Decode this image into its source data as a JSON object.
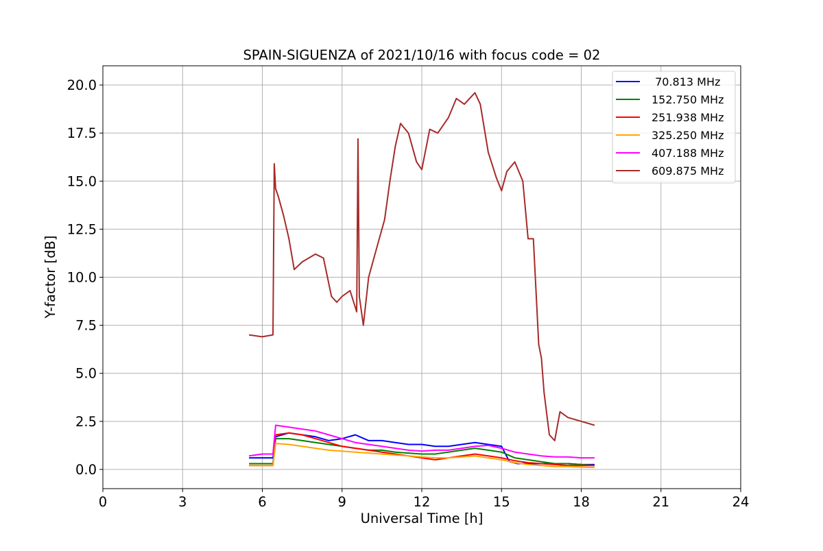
{
  "chart_data": {
    "type": "line",
    "title": "SPAIN-SIGUENZA of 2021/10/16 with focus code = 02",
    "xlabel": "Universal Time [h]",
    "ylabel": "Y-factor [dB]",
    "xlim": [
      0,
      24
    ],
    "ylim": [
      -1.0,
      21.0
    ],
    "x_ticks": [
      0,
      3,
      6,
      9,
      12,
      15,
      18,
      21,
      24
    ],
    "x_tick_labels": [
      "0",
      "3",
      "6",
      "9",
      "12",
      "15",
      "18",
      "21",
      "24"
    ],
    "y_ticks": [
      0.0,
      2.5,
      5.0,
      7.5,
      10.0,
      12.5,
      15.0,
      17.5,
      20.0
    ],
    "y_tick_labels": [
      "0.0",
      "2.5",
      "5.0",
      "7.5",
      "10.0",
      "12.5",
      "15.0",
      "17.5",
      "20.0"
    ],
    "grid": true,
    "legend_position": "top-right",
    "series": [
      {
        "name": " 70.813 MHz",
        "color": "#0000ff",
        "x": [
          5.5,
          6.0,
          6.4,
          6.5,
          7.0,
          7.5,
          8.0,
          8.5,
          9.0,
          9.5,
          10.0,
          10.5,
          11.0,
          11.5,
          12.0,
          12.5,
          13.0,
          13.5,
          14.0,
          14.5,
          15.0,
          15.3,
          15.6,
          16.0,
          16.5,
          17.0,
          17.5,
          18.0,
          18.5
        ],
        "y": [
          0.6,
          0.6,
          0.6,
          1.7,
          1.9,
          1.8,
          1.7,
          1.5,
          1.6,
          1.8,
          1.5,
          1.5,
          1.4,
          1.3,
          1.3,
          1.2,
          1.2,
          1.3,
          1.4,
          1.3,
          1.2,
          0.4,
          0.3,
          0.3,
          0.3,
          0.3,
          0.3,
          0.25,
          0.25
        ]
      },
      {
        "name": "152.750 MHz",
        "color": "#008000",
        "x": [
          5.5,
          6.0,
          6.4,
          6.5,
          7.0,
          7.5,
          8.0,
          8.5,
          9.0,
          9.5,
          10.0,
          10.5,
          11.0,
          11.5,
          12.0,
          12.5,
          13.0,
          13.5,
          14.0,
          14.5,
          15.0,
          15.5,
          16.0,
          16.5,
          17.0,
          17.5,
          18.0,
          18.5
        ],
        "y": [
          0.3,
          0.3,
          0.3,
          1.6,
          1.6,
          1.5,
          1.4,
          1.3,
          1.2,
          1.1,
          1.0,
          1.0,
          0.9,
          0.85,
          0.8,
          0.8,
          0.9,
          1.0,
          1.1,
          1.0,
          0.9,
          0.6,
          0.5,
          0.4,
          0.3,
          0.3,
          0.25,
          0.2
        ]
      },
      {
        "name": "251.938 MHz",
        "color": "#ff0000",
        "x": [
          5.5,
          6.0,
          6.4,
          6.5,
          7.0,
          7.5,
          8.0,
          8.5,
          9.0,
          9.5,
          10.0,
          10.5,
          11.0,
          11.5,
          12.0,
          12.5,
          13.0,
          13.5,
          14.0,
          14.5,
          15.0,
          15.5,
          16.0,
          16.5,
          17.0,
          17.5,
          18.0,
          18.5
        ],
        "y": [
          0.2,
          0.2,
          0.2,
          1.8,
          1.9,
          1.8,
          1.6,
          1.4,
          1.2,
          1.1,
          1.0,
          0.9,
          0.8,
          0.7,
          0.6,
          0.5,
          0.6,
          0.7,
          0.8,
          0.7,
          0.6,
          0.45,
          0.35,
          0.3,
          0.25,
          0.2,
          0.2,
          0.2
        ]
      },
      {
        "name": "325.250 MHz",
        "color": "#ffa500",
        "x": [
          5.5,
          6.0,
          6.4,
          6.5,
          7.0,
          7.5,
          8.0,
          8.5,
          9.0,
          9.5,
          10.0,
          10.5,
          11.0,
          11.5,
          12.0,
          12.5,
          13.0,
          13.5,
          14.0,
          14.5,
          15.0,
          15.5,
          16.0,
          16.5,
          17.0,
          17.5,
          18.0,
          18.5
        ],
        "y": [
          0.2,
          0.2,
          0.2,
          1.35,
          1.3,
          1.2,
          1.1,
          1.0,
          0.95,
          0.9,
          0.85,
          0.8,
          0.75,
          0.7,
          0.65,
          0.6,
          0.6,
          0.65,
          0.7,
          0.6,
          0.5,
          0.35,
          0.25,
          0.2,
          0.15,
          0.15,
          0.12,
          0.1
        ]
      },
      {
        "name": "407.188 MHz",
        "color": "#ff00ff",
        "x": [
          5.5,
          6.0,
          6.4,
          6.5,
          7.0,
          7.5,
          8.0,
          8.5,
          9.0,
          9.5,
          10.0,
          10.5,
          11.0,
          11.5,
          12.0,
          12.5,
          13.0,
          13.5,
          14.0,
          14.5,
          15.0,
          15.5,
          16.0,
          16.5,
          17.0,
          17.5,
          18.0,
          18.5
        ],
        "y": [
          0.7,
          0.8,
          0.8,
          2.3,
          2.2,
          2.1,
          2.0,
          1.8,
          1.6,
          1.4,
          1.3,
          1.2,
          1.1,
          1.0,
          0.95,
          1.0,
          1.0,
          1.1,
          1.2,
          1.25,
          1.1,
          0.9,
          0.8,
          0.7,
          0.65,
          0.65,
          0.6,
          0.6
        ]
      },
      {
        "name": "609.875 MHz",
        "color": "#a52a2a",
        "x": [
          5.5,
          6.0,
          6.4,
          6.45,
          6.5,
          6.6,
          6.8,
          7.0,
          7.2,
          7.5,
          8.0,
          8.3,
          8.6,
          8.8,
          9.0,
          9.3,
          9.55,
          9.6,
          9.65,
          9.8,
          10.0,
          10.3,
          10.6,
          10.8,
          11.0,
          11.2,
          11.5,
          11.8,
          12.0,
          12.3,
          12.6,
          13.0,
          13.3,
          13.6,
          14.0,
          14.2,
          14.5,
          14.8,
          15.0,
          15.2,
          15.5,
          15.8,
          16.0,
          16.2,
          16.4,
          16.5,
          16.6,
          16.8,
          17.0,
          17.2,
          17.5,
          18.0,
          18.5
        ],
        "y": [
          7.0,
          6.9,
          7.0,
          15.9,
          14.6,
          14.2,
          13.2,
          12.0,
          10.4,
          10.8,
          11.2,
          11.0,
          9.0,
          8.7,
          9.0,
          9.3,
          8.2,
          17.2,
          9.0,
          7.5,
          10.0,
          11.5,
          13.0,
          15.0,
          16.8,
          18.0,
          17.5,
          16.0,
          15.6,
          17.7,
          17.5,
          18.3,
          19.3,
          19.0,
          19.6,
          19.0,
          16.5,
          15.2,
          14.5,
          15.5,
          16.0,
          15.0,
          12.0,
          12.0,
          6.5,
          5.8,
          4.0,
          1.8,
          1.5,
          3.0,
          2.7,
          2.5,
          2.3
        ]
      }
    ]
  }
}
